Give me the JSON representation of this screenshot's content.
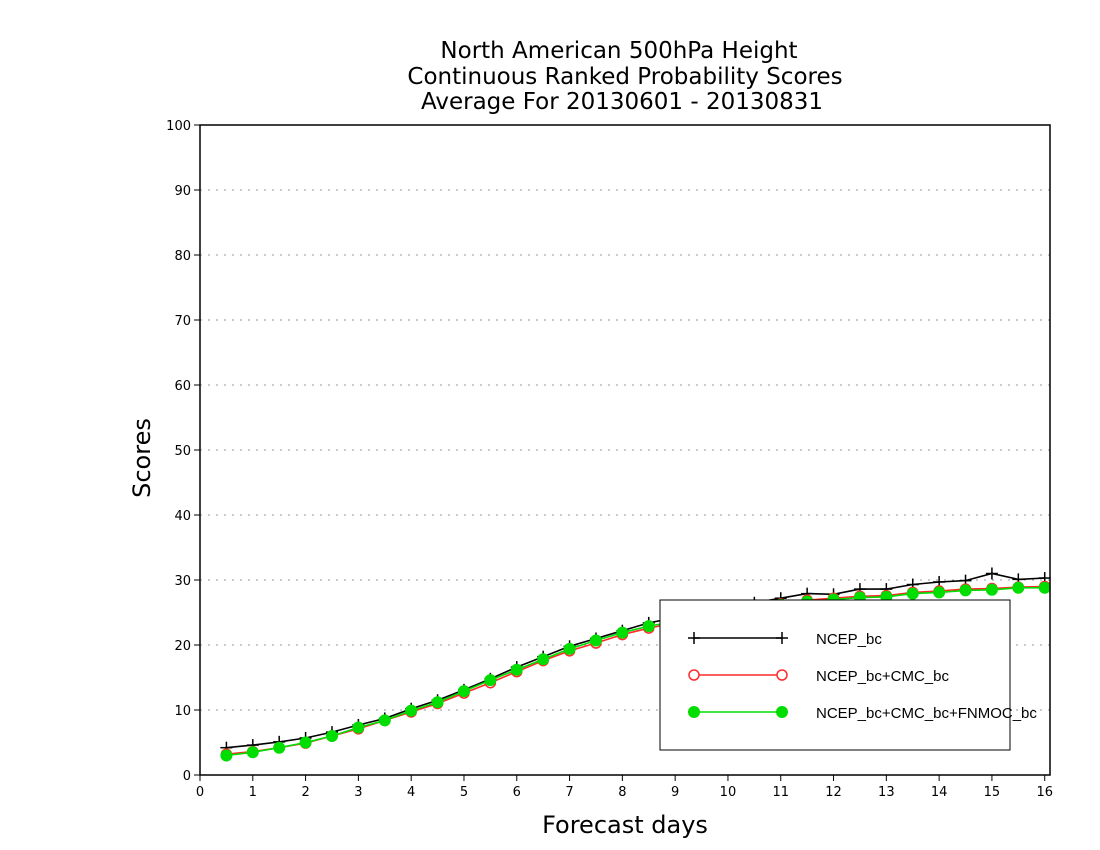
{
  "chart_data": {
    "type": "line",
    "title_lines": [
      "North American 500hPa Height",
      "Continuous Ranked Probability Scores",
      "Average For 20130601 - 20130831"
    ],
    "xlabel": "Forecast days",
    "ylabel": "Scores",
    "xlim": [
      0,
      16.1
    ],
    "ylim": [
      0,
      100
    ],
    "x_ticks": [
      0,
      1,
      2,
      3,
      4,
      5,
      6,
      7,
      8,
      9,
      10,
      11,
      12,
      13,
      14,
      15,
      16
    ],
    "y_ticks": [
      0,
      10,
      20,
      30,
      40,
      50,
      60,
      70,
      80,
      90,
      100
    ],
    "grid": "horizontal dotted",
    "legend_position": "lower-right",
    "x": [
      0.5,
      1.0,
      1.5,
      2.0,
      2.5,
      3.0,
      3.5,
      4.0,
      4.5,
      5.0,
      5.5,
      6.0,
      6.5,
      7.0,
      7.5,
      8.0,
      8.5,
      9.0,
      9.5,
      10.0,
      10.5,
      11.0,
      11.5,
      12.0,
      12.5,
      13.0,
      13.5,
      14.0,
      14.5,
      15.0,
      15.5,
      16.0
    ],
    "series": [
      {
        "name": "NCEP_bc",
        "color": "#000000",
        "marker": "plus",
        "values": [
          4.2,
          4.6,
          5.1,
          5.7,
          6.6,
          7.7,
          8.7,
          10.2,
          11.5,
          13.1,
          14.8,
          16.6,
          18.2,
          19.8,
          21.0,
          22.2,
          23.4,
          24.2,
          25.0,
          25.8,
          26.5,
          27.2,
          27.9,
          27.8,
          28.6,
          28.6,
          29.3,
          29.7,
          29.9,
          31.0,
          30.1,
          30.3
        ]
      },
      {
        "name": "NCEP_bc+CMC_bc",
        "color": "#ff2a2a",
        "marker": "open-circle",
        "values": [
          3.2,
          3.6,
          4.2,
          4.9,
          6.0,
          7.1,
          8.4,
          9.7,
          11.0,
          12.6,
          14.2,
          15.9,
          17.6,
          19.1,
          20.3,
          21.6,
          22.6,
          23.4,
          24.2,
          25.0,
          25.7,
          26.3,
          26.9,
          27.2,
          27.5,
          27.6,
          28.1,
          28.3,
          28.6,
          28.7,
          28.9,
          29.0
        ]
      },
      {
        "name": "NCEP_bc+CMC_bc+FNMOC_bc",
        "color": "#00dd00",
        "marker": "filled-circle",
        "values": [
          3.0,
          3.5,
          4.2,
          5.0,
          6.0,
          7.3,
          8.4,
          9.9,
          11.2,
          12.9,
          14.6,
          16.2,
          17.8,
          19.4,
          20.7,
          21.9,
          22.9,
          23.6,
          24.3,
          25.0,
          25.6,
          26.2,
          26.7,
          27.0,
          27.3,
          27.4,
          27.9,
          28.1,
          28.4,
          28.5,
          28.8,
          28.8
        ]
      }
    ]
  }
}
